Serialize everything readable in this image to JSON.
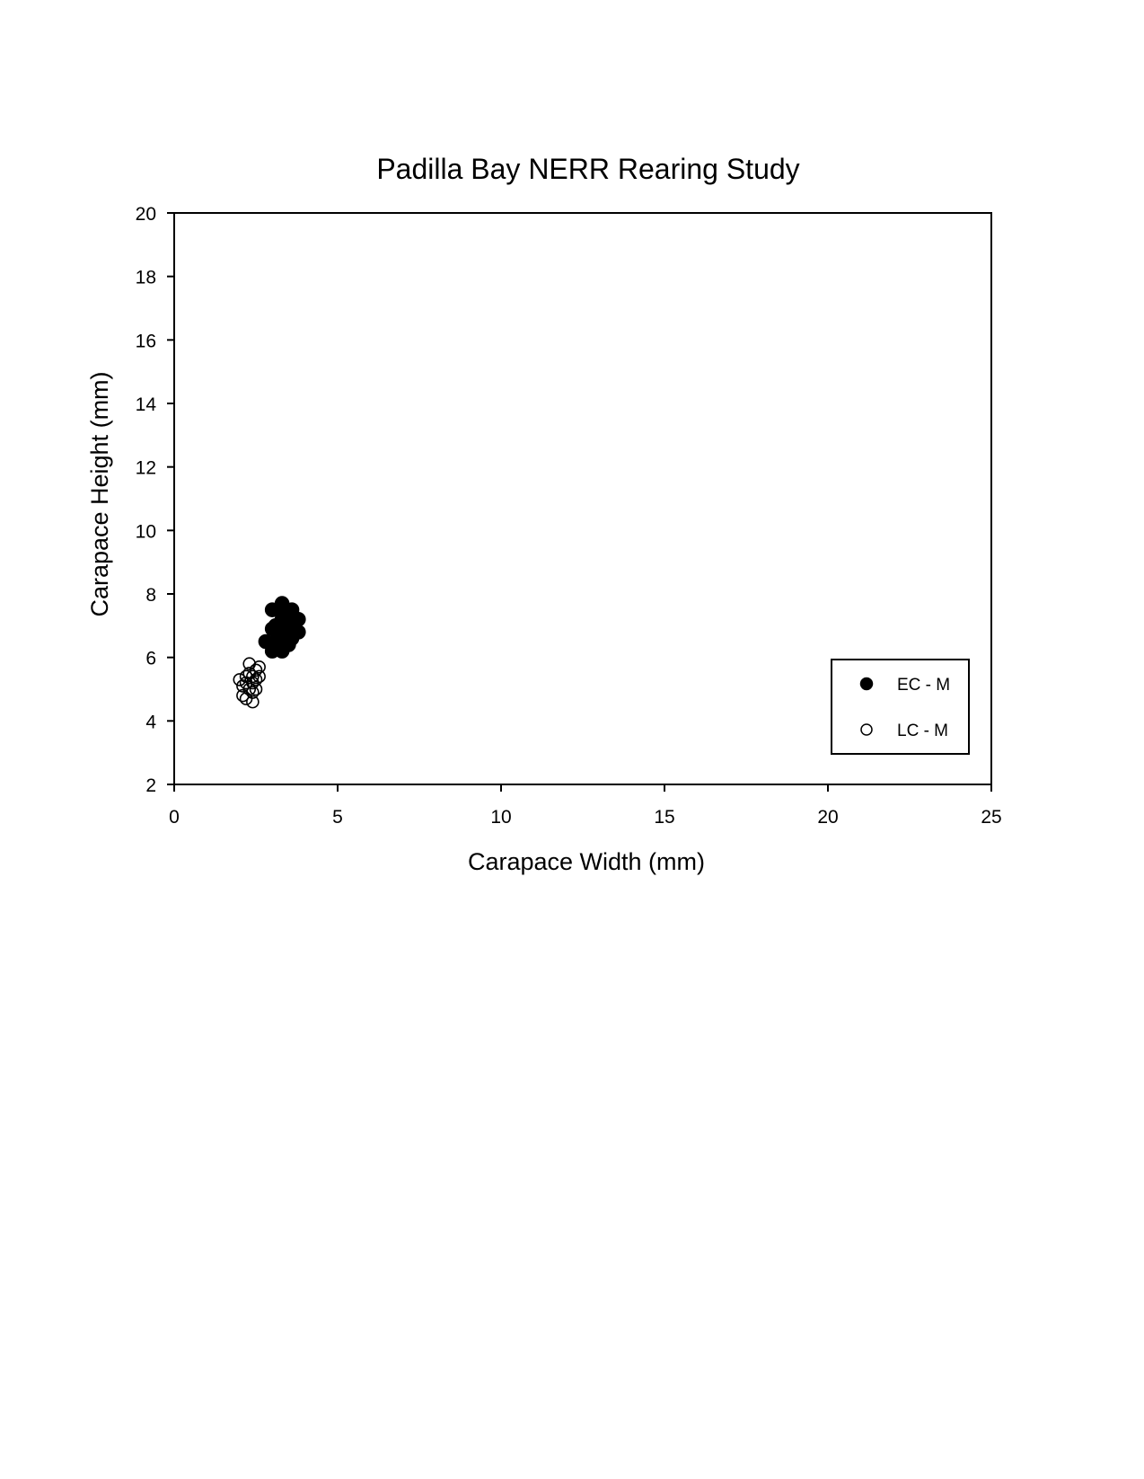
{
  "chart_data": {
    "type": "scatter",
    "title": "Padilla Bay NERR Rearing Study",
    "xlabel": "Carapace Width (mm)",
    "ylabel": "Carapace Height (mm)",
    "xlim": [
      0,
      25
    ],
    "ylim": [
      2,
      20
    ],
    "xticks": [
      0,
      5,
      10,
      15,
      20,
      25
    ],
    "yticks": [
      2,
      4,
      6,
      8,
      10,
      12,
      14,
      16,
      18,
      20
    ],
    "grid": false,
    "legend_position": "bottom-right",
    "series": [
      {
        "name": "EC - M",
        "marker": "filled-circle",
        "color": "#000000",
        "points": [
          [
            2.8,
            6.5
          ],
          [
            3.0,
            7.5
          ],
          [
            3.0,
            6.2
          ],
          [
            3.1,
            7.0
          ],
          [
            3.1,
            6.5
          ],
          [
            3.2,
            6.8
          ],
          [
            3.2,
            6.4
          ],
          [
            3.3,
            7.7
          ],
          [
            3.3,
            7.2
          ],
          [
            3.3,
            6.2
          ],
          [
            3.4,
            6.7
          ],
          [
            3.4,
            7.4
          ],
          [
            3.5,
            6.9
          ],
          [
            3.5,
            7.0
          ],
          [
            3.5,
            6.4
          ],
          [
            3.6,
            7.5
          ],
          [
            3.6,
            6.6
          ],
          [
            3.7,
            7.1
          ],
          [
            3.7,
            6.8
          ],
          [
            3.8,
            6.8
          ],
          [
            3.8,
            7.2
          ],
          [
            3.2,
            7.0
          ],
          [
            3.4,
            6.4
          ],
          [
            3.0,
            6.9
          ]
        ]
      },
      {
        "name": "LC - M",
        "marker": "open-circle",
        "color": "#000000",
        "points": [
          [
            2.0,
            5.3
          ],
          [
            2.1,
            4.8
          ],
          [
            2.1,
            5.1
          ],
          [
            2.2,
            5.4
          ],
          [
            2.2,
            4.7
          ],
          [
            2.3,
            5.8
          ],
          [
            2.3,
            5.0
          ],
          [
            2.3,
            5.5
          ],
          [
            2.4,
            4.6
          ],
          [
            2.4,
            5.2
          ],
          [
            2.4,
            4.9
          ],
          [
            2.5,
            5.6
          ],
          [
            2.5,
            5.3
          ],
          [
            2.5,
            5.0
          ],
          [
            2.6,
            5.4
          ],
          [
            2.6,
            5.7
          ],
          [
            2.2,
            5.2
          ],
          [
            2.4,
            5.4
          ]
        ]
      }
    ]
  }
}
